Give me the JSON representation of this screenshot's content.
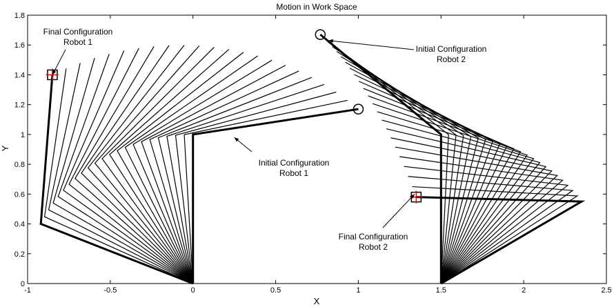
{
  "chart_data": {
    "type": "line",
    "title": "Motion in Work Space",
    "xlabel": "X",
    "ylabel": "Y",
    "xlim": [
      -1,
      2.5
    ],
    "ylim": [
      0,
      1.8
    ],
    "xticks": [
      "-1",
      "-0.5",
      "0",
      "0.5",
      "1",
      "1.5",
      "2",
      "2.5"
    ],
    "yticks": [
      "0",
      "0.2",
      "0.4",
      "0.6",
      "0.8",
      "1",
      "1.2",
      "1.4",
      "1.6",
      "1.8"
    ],
    "grid": false,
    "robots": [
      {
        "base": [
          0,
          0
        ],
        "initial_configuration": [
          [
            0,
            0
          ],
          [
            0,
            1.0
          ],
          [
            1.0,
            1.17
          ]
        ],
        "final_configuration": [
          [
            0,
            0
          ],
          [
            -0.92,
            0.4
          ],
          [
            -0.85,
            1.4
          ]
        ],
        "initial_marker": "circle",
        "final_marker": "square"
      },
      {
        "base": [
          1.5,
          0
        ],
        "initial_configuration": [
          [
            1.5,
            0
          ],
          [
            1.5,
            1.0
          ],
          [
            0.77,
            1.67
          ]
        ],
        "final_configuration": [
          [
            1.5,
            0
          ],
          [
            2.35,
            0.55
          ],
          [
            1.35,
            0.58
          ]
        ],
        "initial_marker": "circle",
        "final_marker": "square"
      }
    ],
    "annotations": [
      {
        "lines": [
          "Final Configuration",
          "Robot 1"
        ],
        "target": [
          -0.85,
          1.4
        ]
      },
      {
        "lines": [
          "Initial Configuration",
          "Robot 1"
        ],
        "target": [
          0.25,
          0.98
        ]
      },
      {
        "lines": [
          "Initial Configuration",
          "Robot 2"
        ],
        "target": [
          0.82,
          1.63
        ]
      },
      {
        "lines": [
          "Final Configuration",
          "Robot 2"
        ],
        "target": [
          1.34,
          0.6
        ]
      }
    ],
    "colors": {
      "line": "#000000",
      "final_marker_cross": "#cc0000"
    }
  }
}
